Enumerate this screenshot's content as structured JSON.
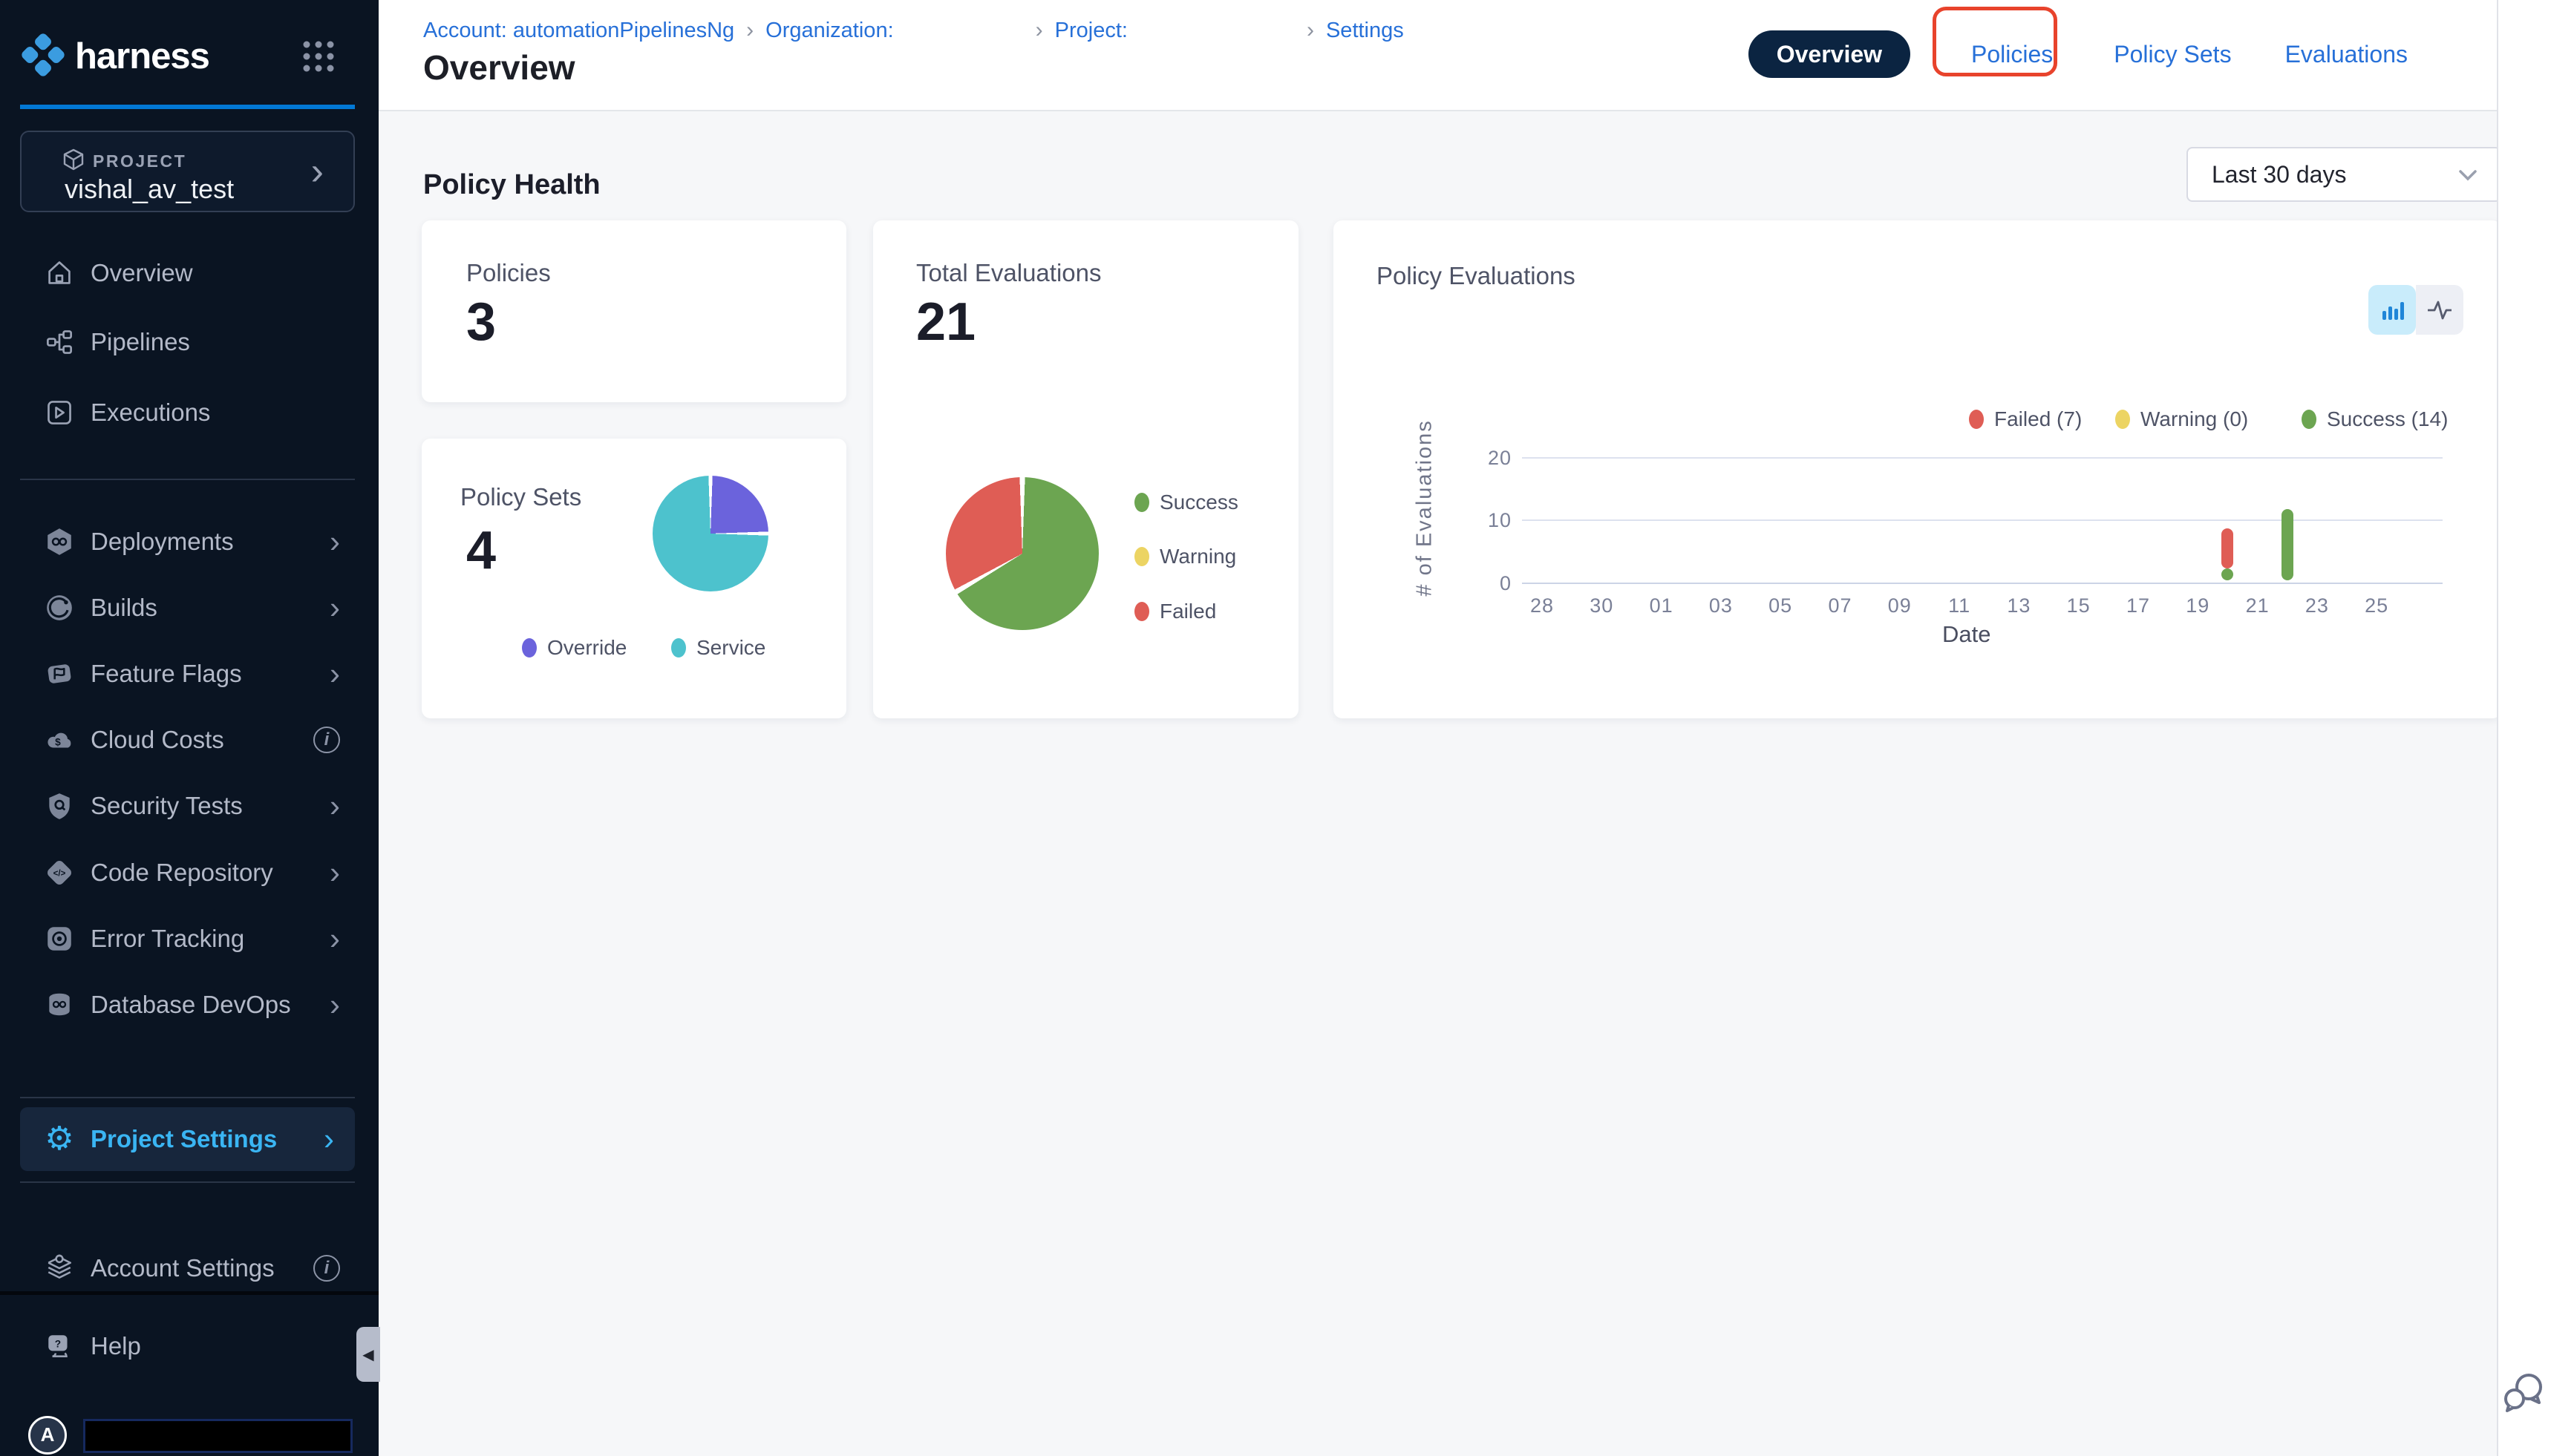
{
  "app": {
    "name": "harness"
  },
  "glyphs": {
    "chevron": "›",
    "gear": "⚙",
    "info": "i",
    "collapse": "◀"
  },
  "colors": {
    "accent_blue": "#0278d5",
    "sidebar_bg": "#0a1422",
    "active_item_blue": "#3ab5f3",
    "link_blue": "#2770d8",
    "annotation_red": "#e8432c",
    "success_green": "#6ca551",
    "failed_red": "#df5d55",
    "warning_yellow": "#ecd463",
    "override_purple": "#6b63dc",
    "service_teal": "#4dc2cd"
  },
  "sidebar": {
    "project_label": "PROJECT",
    "project_name": "vishal_av_test",
    "top_items": [
      {
        "label": "Overview"
      },
      {
        "label": "Pipelines"
      },
      {
        "label": "Executions"
      }
    ],
    "module_items": [
      {
        "label": "Deployments",
        "trailing": "chevron"
      },
      {
        "label": "Builds",
        "trailing": "chevron"
      },
      {
        "label": "Feature Flags",
        "trailing": "chevron"
      },
      {
        "label": "Cloud Costs",
        "trailing": "info"
      },
      {
        "label": "Security Tests",
        "trailing": "chevron"
      },
      {
        "label": "Code Repository",
        "trailing": "chevron"
      },
      {
        "label": "Error Tracking",
        "trailing": "chevron"
      },
      {
        "label": "Database DevOps",
        "trailing": "chevron"
      }
    ],
    "project_settings": {
      "label": "Project Settings"
    },
    "account_settings": {
      "label": "Account Settings"
    },
    "help": {
      "label": "Help"
    },
    "avatar_letter": "A"
  },
  "header": {
    "breadcrumb": [
      {
        "label": "Account: automationPipelinesNg"
      },
      {
        "label": "Organization:"
      },
      {
        "label": "Project:"
      },
      {
        "label": "Settings"
      }
    ],
    "title": "Overview",
    "tabs": [
      {
        "label": "Overview",
        "active": true
      },
      {
        "label": "Policies",
        "annotated": true
      },
      {
        "label": "Policy Sets"
      },
      {
        "label": "Evaluations"
      }
    ]
  },
  "main": {
    "section_title": "Policy Health",
    "date_filter": {
      "value": "Last 30 days"
    },
    "cards": {
      "policies": {
        "label": "Policies",
        "value": "3"
      },
      "total_evaluations": {
        "label": "Total Evaluations",
        "value": "21"
      },
      "policy_sets": {
        "label": "Policy Sets",
        "value": "4"
      }
    }
  },
  "chart_data": [
    {
      "type": "pie",
      "title": "Policy Sets",
      "total": 4,
      "slices": [
        {
          "label": "Override",
          "value": 1,
          "color": "#6b63dc"
        },
        {
          "label": "Service",
          "value": 3,
          "color": "#4dc2cd"
        }
      ],
      "legend_position": "bottom"
    },
    {
      "type": "pie",
      "title": "Total Evaluations",
      "total": 21,
      "slices": [
        {
          "label": "Success",
          "value": 14,
          "color": "#6ca551"
        },
        {
          "label": "Warning",
          "value": 0,
          "color": "#ecd463"
        },
        {
          "label": "Failed",
          "value": 7,
          "color": "#df5d55"
        }
      ],
      "legend_position": "right"
    },
    {
      "type": "bar",
      "stacked": true,
      "title": "Policy Evaluations",
      "xlabel": "Date",
      "ylabel": "# of Evaluations",
      "ylim": [
        0,
        20
      ],
      "yticks": [
        "20",
        "10",
        "0"
      ],
      "xticks": [
        "28",
        "30",
        "01",
        "03",
        "05",
        "07",
        "09",
        "11",
        "13",
        "15",
        "17",
        "19",
        "21",
        "23",
        "25"
      ],
      "grid": "horizontal",
      "legend_position": "top-right",
      "legend": [
        {
          "label": "Failed (7)",
          "color": "#df5d55"
        },
        {
          "label": "Warning (0)",
          "color": "#ecd463"
        },
        {
          "label": "Success (14)",
          "color": "#6ca551"
        }
      ],
      "points": [
        {
          "date": "20",
          "stack": [
            {
              "series": "Success",
              "value": 2,
              "color": "#6ca551"
            },
            {
              "series": "Failed",
              "value": 7,
              "color": "#df5d55"
            }
          ]
        },
        {
          "date": "22",
          "stack": [
            {
              "series": "Success",
              "value": 12,
              "color": "#6ca551"
            }
          ]
        }
      ]
    }
  ]
}
